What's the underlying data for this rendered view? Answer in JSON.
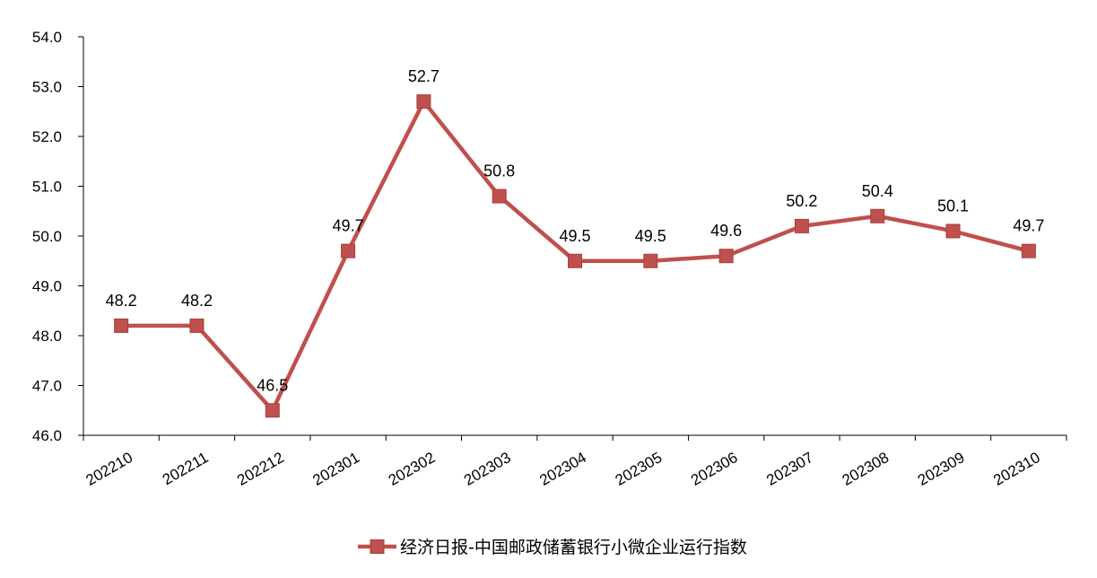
{
  "chart_data": {
    "type": "line",
    "title": "",
    "xlabel": "",
    "ylabel": "",
    "ylim": [
      46.0,
      54.0
    ],
    "yticks": [
      "46.0",
      "47.0",
      "48.0",
      "49.0",
      "50.0",
      "51.0",
      "52.0",
      "53.0",
      "54.0"
    ],
    "categories": [
      "202210",
      "202211",
      "202212",
      "202301",
      "202302",
      "202303",
      "202304",
      "202305",
      "202306",
      "202307",
      "202308",
      "202309",
      "202310"
    ],
    "series": [
      {
        "name": "经济日报-中国邮政储蓄银行小微企业运行指数",
        "values": [
          48.2,
          48.2,
          46.5,
          49.7,
          52.7,
          50.8,
          49.5,
          49.5,
          49.6,
          50.2,
          50.4,
          50.1,
          49.7
        ],
        "labels": [
          "48.2",
          "48.2",
          "46.5",
          "49.7",
          "52.7",
          "50.8",
          "49.5",
          "49.5",
          "49.6",
          "50.2",
          "50.4",
          "50.1",
          "49.7"
        ],
        "color": "#C0504D",
        "marker": "square"
      }
    ],
    "grid": false,
    "legend_position": "bottom"
  }
}
